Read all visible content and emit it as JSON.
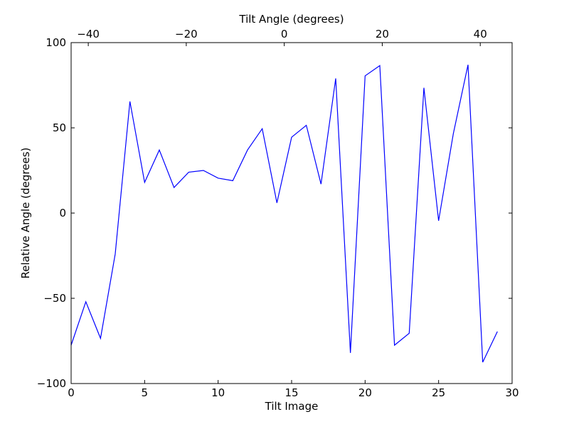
{
  "chart_data": {
    "type": "line",
    "xlabel": "Tilt Image",
    "ylabel": "Relative Angle (degrees)",
    "top_xlabel": "Tilt Angle (degrees)",
    "xlim": [
      0,
      30
    ],
    "ylim": [
      -100,
      100
    ],
    "top_xlim": [
      -43.5,
      46.5
    ],
    "grid": false,
    "line_color": "#0000ff",
    "x_ticks": [
      {
        "value": 0,
        "label": "0"
      },
      {
        "value": 5,
        "label": "5"
      },
      {
        "value": 10,
        "label": "10"
      },
      {
        "value": 15,
        "label": "15"
      },
      {
        "value": 20,
        "label": "20"
      },
      {
        "value": 25,
        "label": "25"
      },
      {
        "value": 30,
        "label": "30"
      }
    ],
    "y_ticks": [
      {
        "value": 100,
        "label": "100"
      },
      {
        "value": 50,
        "label": "50"
      },
      {
        "value": 0,
        "label": "0"
      },
      {
        "value": -50,
        "label": "−50"
      },
      {
        "value": -100,
        "label": "−100"
      }
    ],
    "top_ticks": [
      {
        "value": -40,
        "label": "−40"
      },
      {
        "value": -20,
        "label": "−20"
      },
      {
        "value": 0,
        "label": "0"
      },
      {
        "value": 20,
        "label": "20"
      },
      {
        "value": 40,
        "label": "40"
      }
    ],
    "series": [
      {
        "x": [
          0,
          1,
          2,
          3,
          4,
          5,
          6,
          7,
          8,
          9,
          10,
          11,
          12,
          13,
          14,
          15,
          16,
          17,
          18,
          19,
          20,
          21,
          22,
          23,
          24,
          25,
          26,
          27,
          28,
          29
        ],
        "values": [
          -77.5,
          -52,
          -73.5,
          -24,
          65.5,
          18,
          37,
          15,
          24,
          25,
          20.5,
          19,
          37,
          49.5,
          6,
          44.5,
          51.5,
          17,
          79,
          -82,
          80.5,
          86.5,
          -77.5,
          -70.5,
          73.5,
          -4.5,
          46.5,
          87,
          -87.5,
          -69.5
        ]
      }
    ]
  }
}
